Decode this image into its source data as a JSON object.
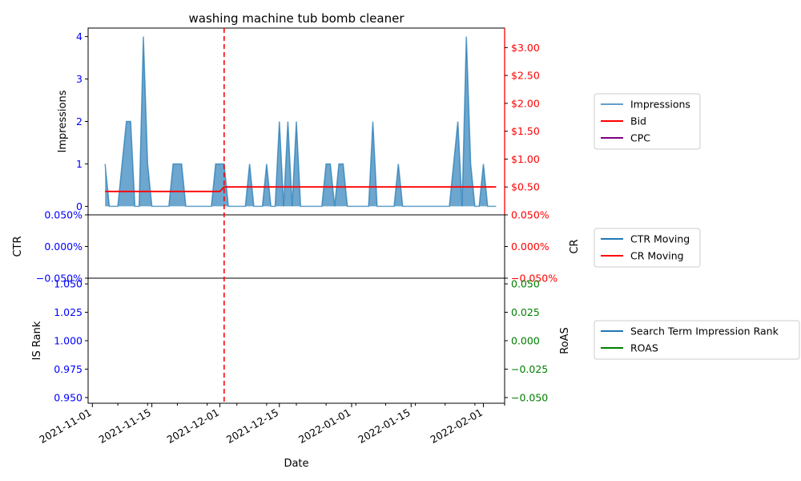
{
  "chart_data": {
    "type": "line",
    "title": "washing machine tub bomb cleaner",
    "xlabel": "Date",
    "x_ticks": [
      "2021-11-01",
      "2021-11-15",
      "2021-12-01",
      "2021-12-15",
      "2022-01-01",
      "2022-01-15",
      "2022-02-01"
    ],
    "vline_date": "2021-12-02",
    "colors": {
      "impressions": "#1f77b4",
      "bid": "#ff0000",
      "cpc": "#800080",
      "ctr": "#1f77b4",
      "cr": "#ff0000",
      "rank": "#1f77b4",
      "roas": "#008000",
      "left_axis": "#0000ff",
      "right_axis_top": "#ff0000",
      "right_axis_bottom": "#008000",
      "vline": "#ff0000"
    },
    "panels": [
      {
        "id": "top",
        "ylabel_left": "Impressions",
        "ylim_left": [
          -0.2,
          4.2
        ],
        "yticks_left": [
          "0",
          "1",
          "2",
          "3",
          "4"
        ],
        "yticks_left_values": [
          0,
          1,
          2,
          3,
          4
        ],
        "ylim_right": [
          0,
          3.35
        ],
        "yticks_right": [
          "$0.50",
          "$1.00",
          "$1.50",
          "$2.00",
          "$2.50",
          "$3.00"
        ],
        "yticks_right_values": [
          0.5,
          1.0,
          1.5,
          2.0,
          2.5,
          3.0
        ],
        "legend": [
          "Impressions",
          "Bid",
          "CPC"
        ],
        "series": [
          {
            "name": "Impressions",
            "axis": "left",
            "style": "area",
            "points": [
              [
                "2021-11-04",
                1
              ],
              [
                "2021-11-05",
                0
              ],
              [
                "2021-11-06",
                0
              ],
              [
                "2021-11-07",
                0
              ],
              [
                "2021-11-08",
                1
              ],
              [
                "2021-11-09",
                2
              ],
              [
                "2021-11-10",
                2
              ],
              [
                "2021-11-11",
                0
              ],
              [
                "2021-11-12",
                0
              ],
              [
                "2021-11-13",
                4
              ],
              [
                "2021-11-14",
                1
              ],
              [
                "2021-11-15",
                0
              ],
              [
                "2021-11-16",
                0
              ],
              [
                "2021-11-17",
                0
              ],
              [
                "2021-11-18",
                0
              ],
              [
                "2021-11-19",
                0
              ],
              [
                "2021-11-20",
                1
              ],
              [
                "2021-11-21",
                1
              ],
              [
                "2021-11-22",
                1
              ],
              [
                "2021-11-23",
                0
              ],
              [
                "2021-11-24",
                0
              ],
              [
                "2021-11-25",
                0
              ],
              [
                "2021-11-26",
                0
              ],
              [
                "2021-11-27",
                0
              ],
              [
                "2021-11-28",
                0
              ],
              [
                "2021-11-29",
                0
              ],
              [
                "2021-11-30",
                1
              ],
              [
                "2021-12-01",
                1
              ],
              [
                "2021-12-02",
                1
              ],
              [
                "2021-12-03",
                0
              ],
              [
                "2021-12-04",
                0
              ],
              [
                "2021-12-05",
                0
              ],
              [
                "2021-12-06",
                0
              ],
              [
                "2021-12-07",
                0
              ],
              [
                "2021-12-08",
                1
              ],
              [
                "2021-12-09",
                0
              ],
              [
                "2021-12-10",
                0
              ],
              [
                "2021-12-11",
                0
              ],
              [
                "2021-12-12",
                1
              ],
              [
                "2021-12-13",
                0
              ],
              [
                "2021-12-14",
                0
              ],
              [
                "2021-12-15",
                2
              ],
              [
                "2021-12-16",
                0
              ],
              [
                "2021-12-17",
                2
              ],
              [
                "2021-12-18",
                0
              ],
              [
                "2021-12-19",
                2
              ],
              [
                "2021-12-20",
                0
              ],
              [
                "2021-12-21",
                0
              ],
              [
                "2021-12-22",
                0
              ],
              [
                "2021-12-23",
                0
              ],
              [
                "2021-12-24",
                0
              ],
              [
                "2021-12-25",
                0
              ],
              [
                "2021-12-26",
                1
              ],
              [
                "2021-12-27",
                1
              ],
              [
                "2021-12-28",
                0
              ],
              [
                "2021-12-29",
                1
              ],
              [
                "2021-12-30",
                1
              ],
              [
                "2021-12-31",
                0
              ],
              [
                "2022-01-01",
                0
              ],
              [
                "2022-01-02",
                0
              ],
              [
                "2022-01-03",
                0
              ],
              [
                "2022-01-04",
                0
              ],
              [
                "2022-01-05",
                0
              ],
              [
                "2022-01-06",
                2
              ],
              [
                "2022-01-07",
                0
              ],
              [
                "2022-01-08",
                0
              ],
              [
                "2022-01-09",
                0
              ],
              [
                "2022-01-10",
                0
              ],
              [
                "2022-01-11",
                0
              ],
              [
                "2022-01-12",
                1
              ],
              [
                "2022-01-13",
                0
              ],
              [
                "2022-01-14",
                0
              ],
              [
                "2022-01-15",
                0
              ],
              [
                "2022-01-16",
                0
              ],
              [
                "2022-01-17",
                0
              ],
              [
                "2022-01-18",
                0
              ],
              [
                "2022-01-19",
                0
              ],
              [
                "2022-01-20",
                0
              ],
              [
                "2022-01-21",
                0
              ],
              [
                "2022-01-22",
                0
              ],
              [
                "2022-01-23",
                0
              ],
              [
                "2022-01-24",
                0
              ],
              [
                "2022-01-25",
                1
              ],
              [
                "2022-01-26",
                2
              ],
              [
                "2022-01-27",
                0
              ],
              [
                "2022-01-28",
                4
              ],
              [
                "2022-01-29",
                1
              ],
              [
                "2022-01-30",
                0
              ],
              [
                "2022-01-31",
                0
              ],
              [
                "2022-02-01",
                1
              ],
              [
                "2022-02-02",
                0
              ],
              [
                "2022-02-03",
                0
              ],
              [
                "2022-02-04",
                0
              ]
            ]
          },
          {
            "name": "Bid",
            "axis": "right",
            "style": "line",
            "points": [
              [
                "2021-11-04",
                0.42
              ],
              [
                "2021-12-01",
                0.42
              ],
              [
                "2021-12-02",
                0.5
              ],
              [
                "2022-02-04",
                0.5
              ]
            ]
          },
          {
            "name": "CPC",
            "axis": "right",
            "style": "line",
            "points": []
          }
        ]
      },
      {
        "id": "middle",
        "ylabel_left": "CTR",
        "ylabel_right": "CR",
        "ylim_left": [
          -0.05,
          0.05
        ],
        "yticks_left": [
          "−0.050%",
          "0.000%",
          "0.050%"
        ],
        "yticks_left_values": [
          -0.05,
          0,
          0.05
        ],
        "ylim_right": [
          -0.05,
          0.05
        ],
        "yticks_right": [
          "−0.050%",
          "0.000%",
          "0.050%"
        ],
        "yticks_right_values": [
          -0.05,
          0,
          0.05
        ],
        "legend": [
          "CTR Moving",
          "CR Moving"
        ],
        "series": [
          {
            "name": "CTR Moving",
            "axis": "left",
            "style": "line",
            "points": []
          },
          {
            "name": "CR Moving",
            "axis": "right",
            "style": "line",
            "points": []
          }
        ]
      },
      {
        "id": "bottom",
        "ylabel_left": "IS Rank",
        "ylabel_right": "RoAS",
        "ylim_left": [
          0.945,
          1.055
        ],
        "yticks_left": [
          "0.950",
          "0.975",
          "1.000",
          "1.025",
          "1.050"
        ],
        "yticks_left_values": [
          0.95,
          0.975,
          1.0,
          1.025,
          1.05
        ],
        "ylim_right": [
          -0.055,
          0.055
        ],
        "yticks_right": [
          "−0.050",
          "−0.025",
          "0.000",
          "0.025",
          "0.050"
        ],
        "yticks_right_values": [
          -0.05,
          -0.025,
          0,
          0.025,
          0.05
        ],
        "legend": [
          "Search Term Impression Rank",
          "ROAS"
        ],
        "series": [
          {
            "name": "Search Term Impression Rank",
            "axis": "left",
            "style": "line",
            "points": []
          },
          {
            "name": "ROAS",
            "axis": "right",
            "style": "line",
            "points": []
          }
        ]
      }
    ]
  }
}
